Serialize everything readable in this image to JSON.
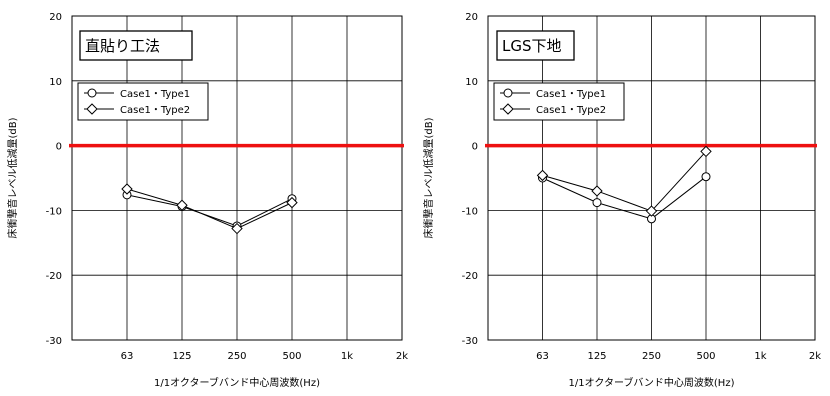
{
  "chart_data": [
    {
      "type": "line",
      "title": "直貼り工法",
      "xlabel": "1/1オクターブバンド中心周波数(Hz)",
      "ylabel": "床衝撃音レベル低減量(dB)",
      "x_ticks": [
        "63",
        "125",
        "250",
        "500",
        "1k",
        "2k"
      ],
      "y_ticks": [
        "20",
        "10",
        "0",
        "-10",
        "-20",
        "-30"
      ],
      "ylim": [
        -30,
        20
      ],
      "grid": true,
      "legend_position": "upper-left",
      "reference_line": {
        "y": 0,
        "color": "#ee1111"
      },
      "series": [
        {
          "name": "Case1・Type1",
          "marker": "circle",
          "x": [
            "63",
            "125",
            "250",
            "500"
          ],
          "values": [
            -7.6,
            -9.4,
            -12.4,
            -8.2
          ]
        },
        {
          "name": "Case1・Type2",
          "marker": "diamond",
          "x": [
            "63",
            "125",
            "250",
            "500"
          ],
          "values": [
            -6.7,
            -9.2,
            -12.8,
            -8.8
          ]
        }
      ]
    },
    {
      "type": "line",
      "title": "LGS下地",
      "xlabel": "1/1オクターブバンド中心周波数(Hz)",
      "ylabel": "床衝撃音レベル低減量(dB)",
      "x_ticks": [
        "63",
        "125",
        "250",
        "500",
        "1k",
        "2k"
      ],
      "y_ticks": [
        "20",
        "10",
        "0",
        "-10",
        "-20",
        "-30"
      ],
      "ylim": [
        -30,
        20
      ],
      "grid": true,
      "legend_position": "upper-left",
      "reference_line": {
        "y": 0,
        "color": "#ee1111"
      },
      "series": [
        {
          "name": "Case1・Type1",
          "marker": "circle",
          "x": [
            "63",
            "125",
            "250",
            "500"
          ],
          "values": [
            -5.0,
            -8.8,
            -11.3,
            -4.8
          ]
        },
        {
          "name": "Case1・Type2",
          "marker": "diamond",
          "x": [
            "63",
            "125",
            "250",
            "500"
          ],
          "values": [
            -4.6,
            -7.0,
            -10.1,
            -0.9
          ]
        }
      ]
    }
  ]
}
